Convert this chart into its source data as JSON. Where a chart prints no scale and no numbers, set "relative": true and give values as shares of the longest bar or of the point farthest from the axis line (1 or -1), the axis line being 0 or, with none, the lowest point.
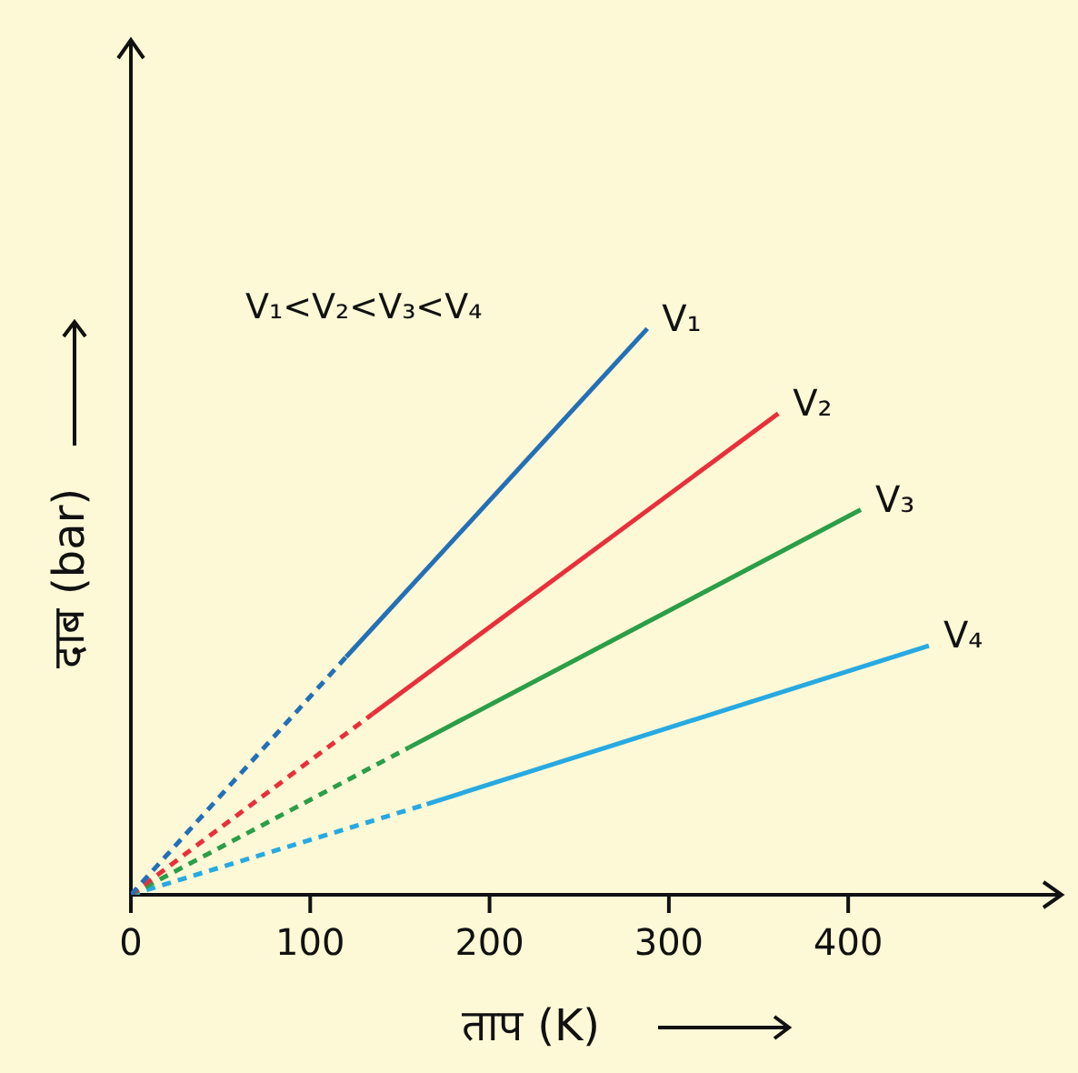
{
  "chart_data": {
    "type": "line",
    "xlabel": "ताप (K)",
    "ylabel": "दाब (bar)",
    "annotations": [
      "V₁<V₂<V₃<V₄"
    ],
    "relative": true,
    "xlim": [
      0,
      517
    ],
    "xticks": [
      0,
      100,
      200,
      300,
      400
    ],
    "tick_labels": "x",
    "grid": false,
    "legend": false,
    "marker": "none",
    "series": [
      {
        "color": "#2370b6",
        "line_style": "dashed",
        "x": [
          0,
          120
        ],
        "values": [
          0,
          0.42
        ]
      },
      {
        "name": "V₁",
        "color": "#2370b6",
        "line_style": "solid",
        "x": [
          120,
          288
        ],
        "values": [
          0.42,
          1
        ]
      },
      {
        "color": "#e8303a",
        "line_style": "dashed",
        "x": [
          0,
          135
        ],
        "values": [
          0,
          0.32
        ]
      },
      {
        "name": "V₂",
        "color": "#e8303a",
        "line_style": "solid",
        "x": [
          135,
          361
        ],
        "values": [
          0.32,
          0.85
        ]
      },
      {
        "color": "#2b9e48",
        "line_style": "dashed",
        "x": [
          0,
          155
        ],
        "values": [
          0,
          0.26
        ]
      },
      {
        "name": "V₃",
        "color": "#2b9e48",
        "line_style": "solid",
        "x": [
          155,
          407
        ],
        "values": [
          0.26,
          0.68
        ]
      },
      {
        "color": "#27a9e1",
        "line_style": "dashed",
        "x": [
          0,
          165
        ],
        "values": [
          0,
          0.16
        ]
      },
      {
        "name": "V₄",
        "color": "#27a9e1",
        "line_style": "solid",
        "x": [
          165,
          445
        ],
        "values": [
          0.16,
          0.44
        ]
      }
    ]
  }
}
